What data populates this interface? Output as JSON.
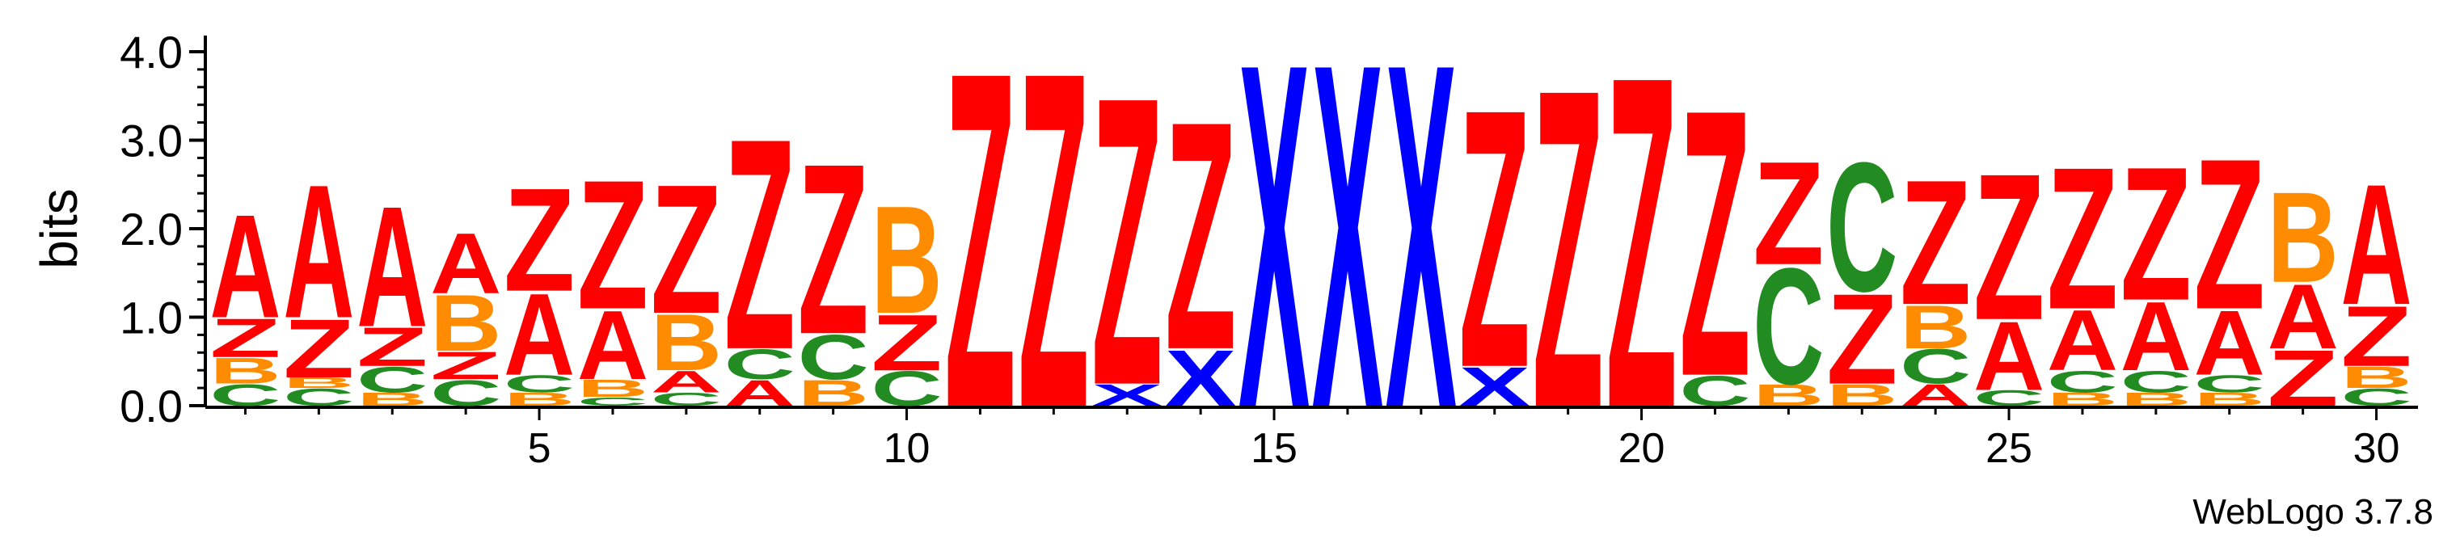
{
  "chart_data": {
    "type": "sequence-logo",
    "ylabel": "bits",
    "ylim": [
      0,
      4.0
    ],
    "y_ticks": [
      "0.0",
      "1.0",
      "2.0",
      "3.0",
      "4.0"
    ],
    "x_ticks": [
      "5",
      "10",
      "15",
      "20",
      "25",
      "30"
    ],
    "credit": "WebLogo 3.7.8",
    "colors": {
      "A": "#ff0000",
      "Z": "#ff0000",
      "B": "#ff8c00",
      "C": "#228b22",
      "X": "#0000ff"
    },
    "positions": [
      {
        "pos": 1,
        "stack": [
          [
            "C",
            0.25
          ],
          [
            "B",
            0.3
          ],
          [
            "Z",
            0.45
          ],
          [
            "A",
            1.2
          ]
        ]
      },
      {
        "pos": 2,
        "stack": [
          [
            "C",
            0.2
          ],
          [
            "B",
            0.12
          ],
          [
            "Z",
            0.68
          ],
          [
            "A",
            1.55
          ]
        ]
      },
      {
        "pos": 3,
        "stack": [
          [
            "B",
            0.15
          ],
          [
            "C",
            0.3
          ],
          [
            "Z",
            0.45
          ],
          [
            "A",
            1.4
          ]
        ]
      },
      {
        "pos": 4,
        "stack": [
          [
            "C",
            0.3
          ],
          [
            "Z",
            0.32
          ],
          [
            "B",
            0.65
          ],
          [
            "A",
            0.7
          ]
        ]
      },
      {
        "pos": 5,
        "stack": [
          [
            "B",
            0.15
          ],
          [
            "C",
            0.2
          ],
          [
            "A",
            0.95
          ],
          [
            "Z",
            1.2
          ]
        ]
      },
      {
        "pos": 6,
        "stack": [
          [
            "C",
            0.1
          ],
          [
            "B",
            0.2
          ],
          [
            "A",
            0.8
          ],
          [
            "Z",
            1.5
          ]
        ]
      },
      {
        "pos": 7,
        "stack": [
          [
            "C",
            0.15
          ],
          [
            "A",
            0.25
          ],
          [
            "B",
            0.65
          ],
          [
            "Z",
            1.5
          ]
        ]
      },
      {
        "pos": 8,
        "stack": [
          [
            "A",
            0.3
          ],
          [
            "C",
            0.35
          ],
          [
            "Z",
            2.45
          ]
        ]
      },
      {
        "pos": 9,
        "stack": [
          [
            "B",
            0.3
          ],
          [
            "C",
            0.52
          ],
          [
            "Z",
            1.98
          ]
        ]
      },
      {
        "pos": 10,
        "stack": [
          [
            "C",
            0.4
          ],
          [
            "Z",
            0.65
          ],
          [
            "B",
            1.25
          ]
        ]
      },
      {
        "pos": 11,
        "stack": [
          [
            "Z",
            3.9
          ]
        ]
      },
      {
        "pos": 12,
        "stack": [
          [
            "Z",
            3.9
          ]
        ]
      },
      {
        "pos": 13,
        "stack": [
          [
            "X",
            0.25
          ],
          [
            "Z",
            3.35
          ]
        ]
      },
      {
        "pos": 14,
        "stack": [
          [
            "X",
            0.65
          ],
          [
            "Z",
            2.65
          ]
        ]
      },
      {
        "pos": 15,
        "stack": [
          [
            "X",
            4.0
          ]
        ]
      },
      {
        "pos": 16,
        "stack": [
          [
            "X",
            4.0
          ]
        ]
      },
      {
        "pos": 17,
        "stack": [
          [
            "X",
            4.0
          ]
        ]
      },
      {
        "pos": 18,
        "stack": [
          [
            "X",
            0.45
          ],
          [
            "Z",
            3.0
          ]
        ]
      },
      {
        "pos": 19,
        "stack": [
          [
            "Z",
            3.7
          ]
        ]
      },
      {
        "pos": 20,
        "stack": [
          [
            "Z",
            3.85
          ]
        ]
      },
      {
        "pos": 21,
        "stack": [
          [
            "C",
            0.35
          ],
          [
            "Z",
            3.1
          ]
        ]
      },
      {
        "pos": 22,
        "stack": [
          [
            "B",
            0.25
          ],
          [
            "C",
            1.35
          ],
          [
            "Z",
            1.2
          ]
        ]
      },
      {
        "pos": 23,
        "stack": [
          [
            "B",
            0.25
          ],
          [
            "Z",
            1.05
          ],
          [
            "C",
            1.5
          ]
        ]
      },
      {
        "pos": 24,
        "stack": [
          [
            "A",
            0.25
          ],
          [
            "C",
            0.4
          ],
          [
            "B",
            0.5
          ],
          [
            "Z",
            1.45
          ]
        ]
      },
      {
        "pos": 25,
        "stack": [
          [
            "C",
            0.18
          ],
          [
            "A",
            0.8
          ],
          [
            "Z",
            1.7
          ]
        ]
      },
      {
        "pos": 26,
        "stack": [
          [
            "B",
            0.15
          ],
          [
            "C",
            0.25
          ],
          [
            "A",
            0.7
          ],
          [
            "Z",
            1.65
          ]
        ]
      },
      {
        "pos": 27,
        "stack": [
          [
            "B",
            0.15
          ],
          [
            "C",
            0.25
          ],
          [
            "A",
            0.8
          ],
          [
            "Z",
            1.55
          ]
        ]
      },
      {
        "pos": 28,
        "stack": [
          [
            "B",
            0.15
          ],
          [
            "C",
            0.2
          ],
          [
            "A",
            0.75
          ],
          [
            "Z",
            1.75
          ]
        ]
      },
      {
        "pos": 29,
        "stack": [
          [
            "Z",
            0.65
          ],
          [
            "A",
            0.75
          ],
          [
            "B",
            1.05
          ]
        ]
      },
      {
        "pos": 30,
        "stack": [
          [
            "C",
            0.2
          ],
          [
            "B",
            0.25
          ],
          [
            "Z",
            0.7
          ],
          [
            "A",
            1.4
          ]
        ]
      }
    ]
  }
}
